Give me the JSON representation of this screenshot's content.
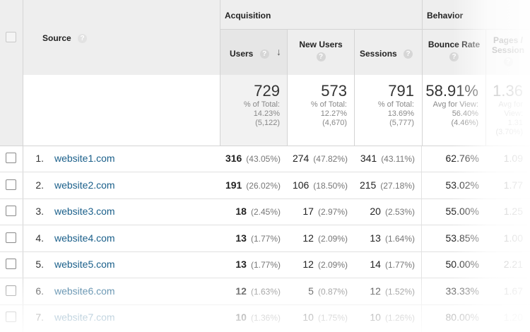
{
  "header": {
    "source_label": "Source",
    "group_acquisition": "Acquisition",
    "group_behavior": "Behavior",
    "columns": {
      "users": "Users",
      "new_users": "New Users",
      "sessions": "Sessions",
      "bounce_rate": "Bounce Rate",
      "pages_session_line1": "Pages /",
      "pages_session_line2": "Session"
    },
    "help_glyph": "?",
    "sort_glyph": "↓"
  },
  "totals": {
    "users": {
      "value": "729",
      "line1": "% of Total:",
      "line2": "14.23%",
      "line3": "(5,122)"
    },
    "new_users": {
      "value": "573",
      "line1": "% of Total:",
      "line2": "12.27%",
      "line3": "(4,670)"
    },
    "sessions": {
      "value": "791",
      "line1": "% of Total:",
      "line2": "13.69%",
      "line3": "(5,777)"
    },
    "bounce_rate": {
      "value": "58.91%",
      "line1": "Avg for View:",
      "line2": "56.40%",
      "line3": "(4.46%)"
    },
    "pages_session": {
      "value": "1.36",
      "line1": "Avg for",
      "line2": "View:",
      "line3": "1.31",
      "line4": "(3.70%)"
    }
  },
  "rows": [
    {
      "num": "1.",
      "source": "website1.com",
      "users": "316",
      "users_pct": "(43.05%)",
      "new_users": "274",
      "new_users_pct": "(47.82%)",
      "sessions": "341",
      "sessions_pct": "(43.11%)",
      "bounce": "62.76%",
      "pages": "1.09"
    },
    {
      "num": "2.",
      "source": "website2.com",
      "users": "191",
      "users_pct": "(26.02%)",
      "new_users": "106",
      "new_users_pct": "(18.50%)",
      "sessions": "215",
      "sessions_pct": "(27.18%)",
      "bounce": "53.02%",
      "pages": "1.77"
    },
    {
      "num": "3.",
      "source": "website3.com",
      "users": "18",
      "users_pct": "(2.45%)",
      "new_users": "17",
      "new_users_pct": "(2.97%)",
      "sessions": "20",
      "sessions_pct": "(2.53%)",
      "bounce": "55.00%",
      "pages": "1.25"
    },
    {
      "num": "4.",
      "source": "website4.com",
      "users": "13",
      "users_pct": "(1.77%)",
      "new_users": "12",
      "new_users_pct": "(2.09%)",
      "sessions": "13",
      "sessions_pct": "(1.64%)",
      "bounce": "53.85%",
      "pages": "1.00"
    },
    {
      "num": "5.",
      "source": "website5.com",
      "users": "13",
      "users_pct": "(1.77%)",
      "new_users": "12",
      "new_users_pct": "(2.09%)",
      "sessions": "14",
      "sessions_pct": "(1.77%)",
      "bounce": "50.00%",
      "pages": "2.21"
    },
    {
      "num": "6.",
      "source": "website6.com",
      "users": "12",
      "users_pct": "(1.63%)",
      "new_users": "5",
      "new_users_pct": "(0.87%)",
      "sessions": "12",
      "sessions_pct": "(1.52%)",
      "bounce": "33.33%",
      "pages": "1.67"
    },
    {
      "num": "7.",
      "source": "website7.com",
      "users": "10",
      "users_pct": "(1.36%)",
      "new_users": "10",
      "new_users_pct": "(1.75%)",
      "sessions": "10",
      "sessions_pct": "(1.26%)",
      "bounce": "80.00%",
      "pages": "1.20"
    }
  ]
}
